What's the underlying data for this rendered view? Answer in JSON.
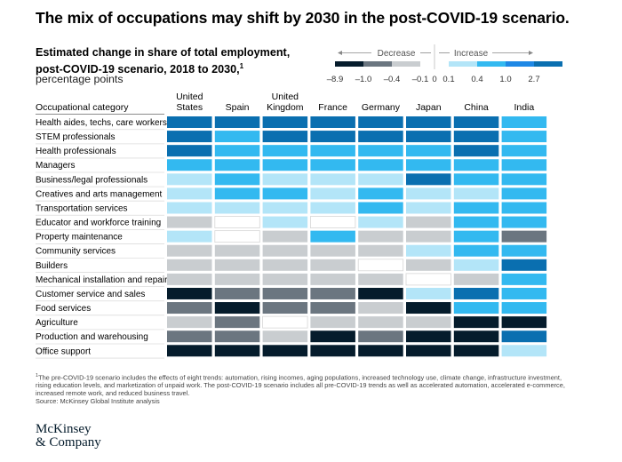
{
  "title": "The mix of occupations may shift by 2030 in the post-COVID-19 scenario.",
  "subtitle_line1": "Estimated change in share of total employment,",
  "subtitle_line2": "post-COVID-19 scenario, 2018 to 2030,",
  "subtitle_footnote_mark": "1",
  "subtitle_unit": "percentage points",
  "legend": {
    "decrease_label": "Decrease",
    "increase_label": "Increase",
    "tick_labels": [
      "–8.9",
      "–1.0",
      "–0.4",
      "–0.1",
      "0",
      "0.1",
      "0.4",
      "1.0",
      "2.7"
    ],
    "colors": [
      "#051c2c",
      "#6b7680",
      "#c9cdd0",
      "#ffffff",
      "#b3e5f8",
      "#33b9f0",
      "#1e88e5",
      "#0a6fb0"
    ]
  },
  "chart_data": {
    "type": "heatmap",
    "title": "Estimated change in share of total employment, post-COVID-19 scenario, 2018 to 2030",
    "unit": "percentage points",
    "row_header": "Occupational category",
    "columns": [
      "United States",
      "Spain",
      "United Kingdom",
      "France",
      "Germany",
      "Japan",
      "China",
      "India"
    ],
    "column_lines": [
      [
        "United",
        "States"
      ],
      [
        "Spain"
      ],
      [
        "United",
        "Kingdom"
      ],
      [
        "France"
      ],
      [
        "Germany"
      ],
      [
        "Japan"
      ],
      [
        "China"
      ],
      [
        "India"
      ]
    ],
    "rows": [
      "Health aides, techs, care workers",
      "STEM professionals",
      "Health professionals",
      "Managers",
      "Business/legal professionals",
      "Creatives and arts management",
      "Transportation services",
      "Educator and workforce training",
      "Property maintenance",
      "Community services",
      "Builders",
      "Mechanical installation and repair",
      "Customer service and sales",
      "Food services",
      "Agriculture",
      "Production and warehousing",
      "Office support"
    ],
    "bins": [
      {
        "code": 0,
        "label": "–8.9 to –1.0",
        "color": "#051c2c"
      },
      {
        "code": 1,
        "label": "–1.0 to –0.4",
        "color": "#6b7680"
      },
      {
        "code": 2,
        "label": "–0.4 to –0.1",
        "color": "#c9cdd0"
      },
      {
        "code": 3,
        "label": "–0.1 to 0.1",
        "color": "#ffffff"
      },
      {
        "code": 4,
        "label": "0.1 to 0.4",
        "color": "#b3e5f8"
      },
      {
        "code": 5,
        "label": "0.4 to 1.0",
        "color": "#33b9f0"
      },
      {
        "code": 6,
        "label": "1.0 to 2.7",
        "color": "#0a6fb0"
      }
    ],
    "values": [
      [
        6,
        6,
        6,
        6,
        6,
        6,
        6,
        5
      ],
      [
        6,
        5,
        6,
        6,
        6,
        6,
        6,
        5
      ],
      [
        6,
        5,
        5,
        5,
        5,
        5,
        6,
        5
      ],
      [
        5,
        5,
        5,
        5,
        5,
        5,
        5,
        5
      ],
      [
        4,
        5,
        4,
        4,
        4,
        6,
        5,
        5
      ],
      [
        4,
        5,
        5,
        4,
        5,
        4,
        4,
        5
      ],
      [
        4,
        4,
        4,
        4,
        5,
        4,
        5,
        5
      ],
      [
        2,
        3,
        4,
        3,
        4,
        2,
        5,
        5
      ],
      [
        4,
        3,
        2,
        5,
        2,
        2,
        5,
        1
      ],
      [
        2,
        2,
        2,
        2,
        2,
        4,
        5,
        5
      ],
      [
        2,
        2,
        2,
        2,
        3,
        2,
        4,
        6
      ],
      [
        2,
        2,
        2,
        2,
        2,
        3,
        2,
        5
      ],
      [
        0,
        1,
        1,
        1,
        0,
        4,
        6,
        5
      ],
      [
        1,
        0,
        1,
        1,
        2,
        0,
        5,
        5
      ],
      [
        2,
        1,
        3,
        2,
        2,
        2,
        0,
        0
      ],
      [
        1,
        1,
        2,
        0,
        1,
        0,
        0,
        6
      ],
      [
        0,
        0,
        0,
        0,
        0,
        0,
        0,
        4
      ]
    ]
  },
  "footnote_mark": "1",
  "footnote": "The pre-COVID-19 scenario includes the effects of eight trends: automation, rising incomes, aging populations, increased technology use, climate change, infrastructure investment, rising education levels, and marketization of unpaid work. The post-COVID-19 scenario includes all pre-COVID-19 trends as well as accelerated automation, accelerated e-commerce, increased remote work, and reduced business travel.",
  "source": "Source: McKinsey Global Institute analysis",
  "logo_line1": "McKinsey",
  "logo_line2": "& Company"
}
